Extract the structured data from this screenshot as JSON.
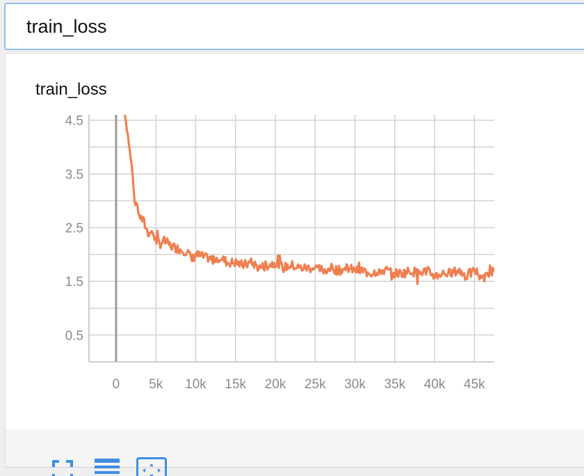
{
  "search": {
    "value": "train_loss"
  },
  "card": {
    "title": "train_loss"
  },
  "toolbar": {
    "fullscreen_icon": "fullscreen-icon",
    "data_table_icon": "list-icon",
    "fit_domain_icon": "fit-domain-icon",
    "accent": "#3e8ee3"
  },
  "chart_data": {
    "type": "line",
    "title": "train_loss",
    "xlabel": "",
    "ylabel": "",
    "xlim": [
      -3400,
      47500
    ],
    "ylim": [
      0,
      4.6
    ],
    "x_ticks": [
      0,
      5000,
      10000,
      15000,
      20000,
      25000,
      30000,
      35000,
      40000,
      45000
    ],
    "x_tick_labels": [
      "0",
      "5k",
      "10k",
      "15k",
      "20k",
      "25k",
      "30k",
      "35k",
      "40k",
      "45k"
    ],
    "y_ticks": [
      0.5,
      1.5,
      2.5,
      3.5,
      4.5
    ],
    "y_tick_labels": [
      "0.5",
      "1.5",
      "2.5",
      "3.5",
      "4.5"
    ],
    "grid": true,
    "line_color": "#f07f50",
    "series": [
      {
        "x": [
          1000,
          1500,
          2000,
          2300,
          2600,
          3000,
          3500,
          4000,
          4500,
          5000,
          5500,
          6000,
          7000,
          8000,
          9000,
          9500,
          10000,
          11000,
          12000,
          13000,
          14000,
          15000,
          16000,
          17000,
          18000,
          19000,
          20000,
          21000,
          22000,
          23000,
          24000,
          25000,
          26000,
          27000,
          28000,
          29000,
          30000,
          31000,
          32000,
          33000,
          34000,
          35000,
          36000,
          37000,
          38000,
          39000,
          40000,
          41000,
          42000,
          43000,
          44000,
          45000,
          46000,
          47500
        ],
        "y": [
          4.75,
          4.2,
          3.6,
          3.1,
          2.95,
          2.7,
          2.6,
          2.4,
          2.45,
          2.25,
          2.2,
          2.25,
          2.15,
          2.1,
          2.05,
          1.9,
          2.0,
          1.95,
          1.9,
          1.95,
          1.85,
          1.85,
          1.8,
          1.85,
          1.75,
          1.8,
          1.85,
          1.75,
          1.8,
          1.75,
          1.75,
          1.75,
          1.7,
          1.75,
          1.7,
          1.75,
          1.7,
          1.7,
          1.65,
          1.7,
          1.7,
          1.65,
          1.65,
          1.7,
          1.65,
          1.7,
          1.6,
          1.65,
          1.65,
          1.7,
          1.6,
          1.7,
          1.6,
          1.7
        ]
      }
    ]
  }
}
